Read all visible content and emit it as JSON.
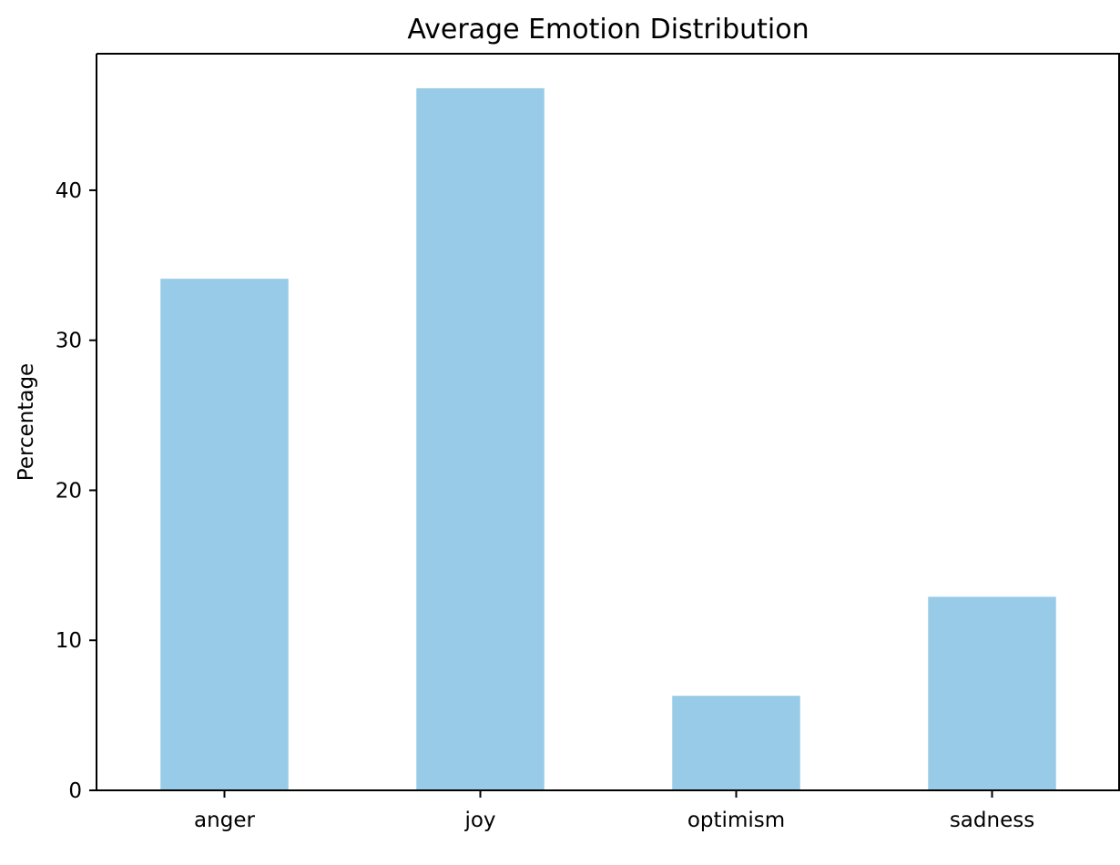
{
  "chart_data": {
    "type": "bar",
    "title": "Average Emotion Distribution",
    "xlabel": "",
    "ylabel": "Percentage",
    "categories": [
      "anger",
      "joy",
      "optimism",
      "sadness"
    ],
    "values": [
      34.1,
      46.8,
      6.3,
      12.9
    ],
    "ylim": [
      0,
      49.1
    ],
    "yticks": [
      0,
      10,
      20,
      30,
      40
    ],
    "ytick_labels": [
      "0",
      "10",
      "20",
      "30",
      "40"
    ],
    "bar_color": "#98cbe7",
    "grid": false,
    "legend": "none"
  }
}
